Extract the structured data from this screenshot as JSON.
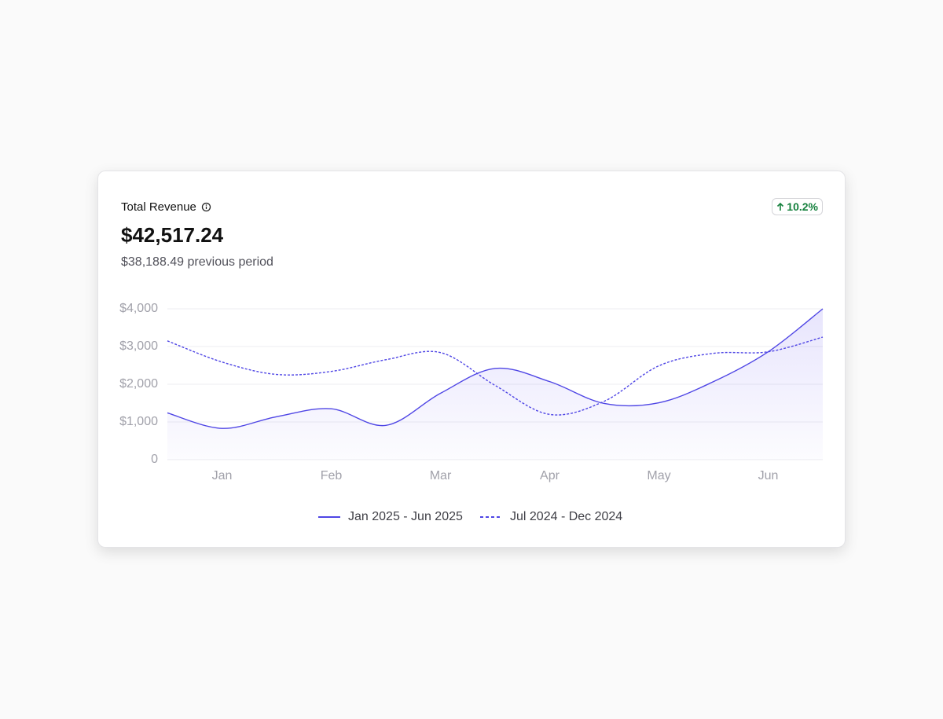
{
  "card": {
    "title": "Total Revenue",
    "value": "$42,517.24",
    "previous": "$38,188.49 previous period",
    "change": "10.2%"
  },
  "chart_data": {
    "type": "line",
    "categories": [
      null,
      "Jan",
      null,
      "Feb",
      null,
      "Mar",
      null,
      "Apr",
      null,
      "May",
      null,
      "Jun",
      null
    ],
    "series": [
      {
        "name": "Jan 2025 - Jun 2025",
        "color": "#4f46e5",
        "values": [
          1240,
          830,
          1140,
          1350,
          910,
          1760,
          2420,
          2070,
          1490,
          1510,
          2070,
          2860,
          4000
        ]
      },
      {
        "name": "Jul 2024 - Dec 2024",
        "color": "#4f46e5",
        "values": [
          3150,
          2590,
          2260,
          2340,
          2650,
          2840,
          1970,
          1200,
          1550,
          2490,
          2820,
          2860,
          3250
        ]
      }
    ],
    "ylim": [
      0,
      4000
    ],
    "yticks": [
      0,
      {
        "value": 1000,
        "label": "$1,000"
      },
      {
        "value": 2000,
        "label": "$2,000"
      },
      {
        "value": 3000,
        "label": "$3,000"
      },
      {
        "value": 4000,
        "label": "$4,000"
      }
    ],
    "grid": true
  }
}
